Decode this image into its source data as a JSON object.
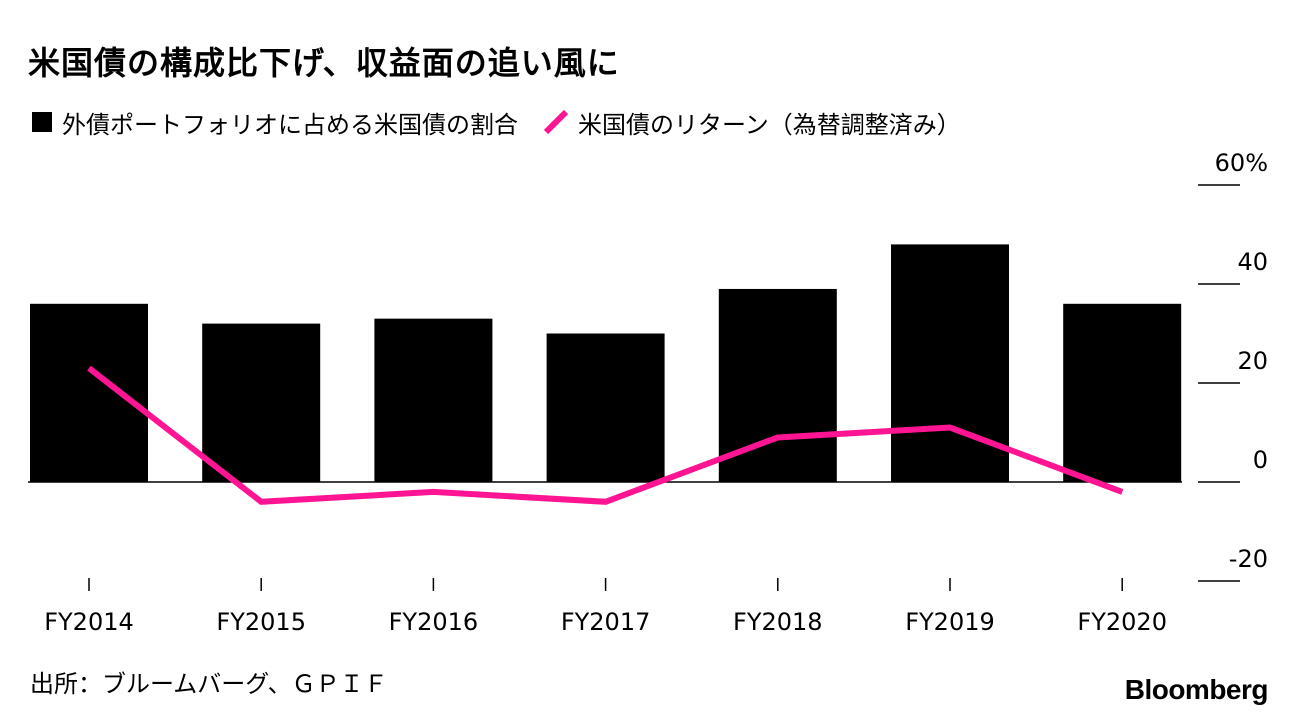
{
  "chart_data": {
    "type": "bar",
    "title": "米国債の構成比下げ、収益面の追い風に",
    "categories": [
      "FY2014",
      "FY2015",
      "FY2016",
      "FY2017",
      "FY2018",
      "FY2019",
      "FY2020"
    ],
    "series": [
      {
        "name": "外債ポートフォリオに占める米国債の割合",
        "kind": "bar",
        "color": "#000000",
        "values": [
          36,
          32,
          33,
          30,
          39,
          48,
          36
        ]
      },
      {
        "name": "米国債のリターン（為替調整済み）",
        "kind": "line",
        "color": "#ff1493",
        "values": [
          23,
          -4,
          -2,
          -4,
          9,
          11,
          -2
        ]
      }
    ],
    "y_ticks": [
      -20,
      0,
      20,
      40,
      60
    ],
    "y_tick_labels": [
      "-20",
      "0",
      "20",
      "40",
      "60%"
    ],
    "ylim": [
      -20,
      60
    ],
    "source": "出所：ブルームバーグ、ＧＰＩＦ",
    "brand": "Bloomberg"
  }
}
